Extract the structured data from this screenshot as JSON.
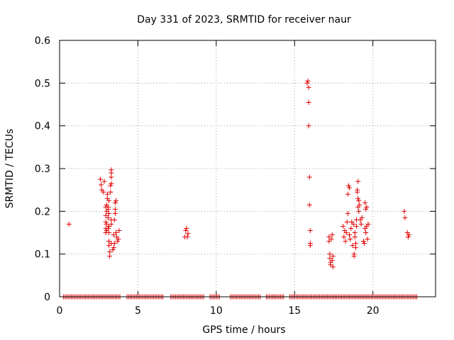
{
  "chart_data": {
    "type": "scatter",
    "title": "Day 331 of 2023, SRMTID for receiver naur",
    "xlabel": "GPS time / hours",
    "ylabel": "SRMTID / TECUs",
    "xlim": [
      0,
      24
    ],
    "ylim": [
      0,
      0.6
    ],
    "xticks": [
      0,
      5,
      10,
      15,
      20
    ],
    "xtick_labels": [
      "0",
      "5",
      "10",
      "15",
      "20"
    ],
    "yticks": [
      0,
      0.1,
      0.2,
      0.3,
      0.4,
      0.5,
      0.6
    ],
    "ytick_labels": [
      "0",
      "0.1",
      "0.2",
      "0.3",
      "0.4",
      "0.5",
      "0.6"
    ],
    "grid": true,
    "marker": "+",
    "color": "#e00000",
    "series": [
      {
        "name": "SRMTID",
        "points": [
          [
            0.6,
            0.17
          ],
          [
            2.6,
            0.275
          ],
          [
            2.65,
            0.262
          ],
          [
            2.7,
            0.25
          ],
          [
            2.8,
            0.245
          ],
          [
            2.85,
            0.27
          ],
          [
            2.95,
            0.15
          ],
          [
            2.95,
            0.16
          ],
          [
            2.95,
            0.175
          ],
          [
            2.95,
            0.19
          ],
          [
            2.95,
            0.21
          ],
          [
            3.0,
            0.155
          ],
          [
            3.0,
            0.17
          ],
          [
            3.0,
            0.2
          ],
          [
            3.0,
            0.215
          ],
          [
            3.05,
            0.23
          ],
          [
            3.05,
            0.24
          ],
          [
            3.1,
            0.16
          ],
          [
            3.1,
            0.185
          ],
          [
            3.1,
            0.205
          ],
          [
            3.1,
            0.21
          ],
          [
            3.15,
            0.12
          ],
          [
            3.15,
            0.13
          ],
          [
            3.15,
            0.15
          ],
          [
            3.15,
            0.165
          ],
          [
            3.15,
            0.195
          ],
          [
            3.15,
            0.225
          ],
          [
            3.2,
            0.095
          ],
          [
            3.2,
            0.105
          ],
          [
            3.25,
            0.245
          ],
          [
            3.25,
            0.26
          ],
          [
            3.3,
            0.265
          ],
          [
            3.3,
            0.28
          ],
          [
            3.3,
            0.29
          ],
          [
            3.3,
            0.297
          ],
          [
            3.3,
            0.125
          ],
          [
            3.3,
            0.17
          ],
          [
            3.3,
            0.18
          ],
          [
            3.4,
            0.11
          ],
          [
            3.45,
            0.115
          ],
          [
            3.45,
            0.145
          ],
          [
            3.5,
            0.125
          ],
          [
            3.5,
            0.18
          ],
          [
            3.55,
            0.195
          ],
          [
            3.55,
            0.205
          ],
          [
            3.55,
            0.22
          ],
          [
            3.6,
            0.225
          ],
          [
            3.6,
            0.15
          ],
          [
            3.65,
            0.14
          ],
          [
            3.7,
            0.13
          ],
          [
            3.75,
            0.135
          ],
          [
            3.8,
            0.155
          ],
          [
            8.0,
            0.14
          ],
          [
            8.05,
            0.155
          ],
          [
            8.1,
            0.16
          ],
          [
            8.15,
            0.14
          ],
          [
            8.2,
            0.148
          ],
          [
            15.8,
            0.5
          ],
          [
            15.85,
            0.505
          ],
          [
            15.9,
            0.49
          ],
          [
            15.9,
            0.455
          ],
          [
            15.9,
            0.4
          ],
          [
            15.95,
            0.28
          ],
          [
            15.95,
            0.215
          ],
          [
            16.0,
            0.155
          ],
          [
            16.0,
            0.125
          ],
          [
            16.0,
            0.12
          ],
          [
            17.2,
            0.14
          ],
          [
            17.2,
            0.13
          ],
          [
            17.25,
            0.1
          ],
          [
            17.25,
            0.09
          ],
          [
            17.3,
            0.08
          ],
          [
            17.3,
            0.075
          ],
          [
            17.35,
            0.135
          ],
          [
            17.4,
            0.145
          ],
          [
            17.4,
            0.085
          ],
          [
            17.45,
            0.07
          ],
          [
            17.45,
            0.095
          ],
          [
            18.1,
            0.165
          ],
          [
            18.15,
            0.14
          ],
          [
            18.2,
            0.155
          ],
          [
            18.25,
            0.13
          ],
          [
            18.3,
            0.15
          ],
          [
            18.35,
            0.175
          ],
          [
            18.4,
            0.195
          ],
          [
            18.4,
            0.24
          ],
          [
            18.45,
            0.26
          ],
          [
            18.5,
            0.255
          ],
          [
            18.5,
            0.145
          ],
          [
            18.55,
            0.135
          ],
          [
            18.6,
            0.16
          ],
          [
            18.65,
            0.175
          ],
          [
            18.7,
            0.12
          ],
          [
            18.75,
            0.17
          ],
          [
            18.8,
            0.1
          ],
          [
            18.8,
            0.095
          ],
          [
            18.85,
            0.15
          ],
          [
            18.85,
            0.14
          ],
          [
            18.9,
            0.125
          ],
          [
            18.9,
            0.115
          ],
          [
            18.95,
            0.18
          ],
          [
            18.95,
            0.165
          ],
          [
            19.0,
            0.25
          ],
          [
            19.0,
            0.245
          ],
          [
            19.05,
            0.21
          ],
          [
            19.05,
            0.23
          ],
          [
            19.05,
            0.27
          ],
          [
            19.1,
            0.2
          ],
          [
            19.1,
            0.225
          ],
          [
            19.15,
            0.215
          ],
          [
            19.2,
            0.18
          ],
          [
            19.25,
            0.17
          ],
          [
            19.3,
            0.185
          ],
          [
            19.4,
            0.13
          ],
          [
            19.45,
            0.125
          ],
          [
            19.5,
            0.16
          ],
          [
            19.5,
            0.22
          ],
          [
            19.55,
            0.205
          ],
          [
            19.55,
            0.15
          ],
          [
            19.6,
            0.21
          ],
          [
            19.6,
            0.165
          ],
          [
            19.65,
            0.135
          ],
          [
            19.7,
            0.17
          ],
          [
            22.0,
            0.2
          ],
          [
            22.05,
            0.185
          ],
          [
            22.2,
            0.15
          ],
          [
            22.25,
            0.14
          ],
          [
            22.3,
            0.145
          ]
        ]
      }
    ],
    "zero_ranges": [
      [
        0.25,
        3.9
      ],
      [
        4.3,
        6.6
      ],
      [
        7.1,
        9.2
      ],
      [
        9.6,
        10.2
      ],
      [
        10.9,
        12.8
      ],
      [
        13.2,
        14.3
      ],
      [
        14.7,
        22.8
      ]
    ],
    "zero_step": 0.1
  }
}
